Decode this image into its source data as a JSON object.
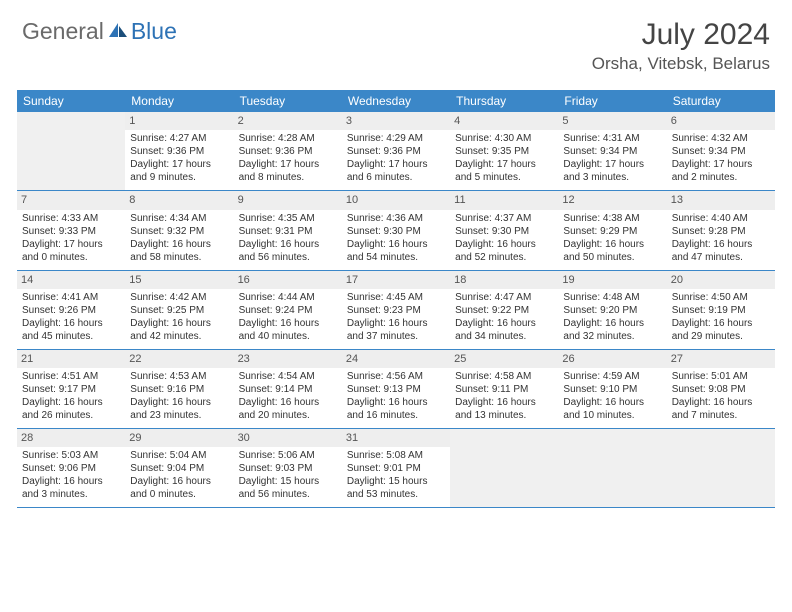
{
  "logo": {
    "text1": "General",
    "text2": "Blue"
  },
  "title": {
    "month": "July 2024",
    "location": "Orsha, Vitebsk, Belarus"
  },
  "colors": {
    "header_bg": "#3b87c8",
    "header_text": "#ffffff",
    "daynum_bg": "#eeeeee",
    "empty_bg": "#f0f0f0",
    "border": "#3b87c8",
    "logo_gray": "#6a6a6a",
    "logo_blue": "#2d72b5"
  },
  "day_names": [
    "Sunday",
    "Monday",
    "Tuesday",
    "Wednesday",
    "Thursday",
    "Friday",
    "Saturday"
  ],
  "weeks": [
    [
      {
        "empty": true
      },
      {
        "num": "1",
        "sunrise": "Sunrise: 4:27 AM",
        "sunset": "Sunset: 9:36 PM",
        "daylight": "Daylight: 17 hours and 9 minutes."
      },
      {
        "num": "2",
        "sunrise": "Sunrise: 4:28 AM",
        "sunset": "Sunset: 9:36 PM",
        "daylight": "Daylight: 17 hours and 8 minutes."
      },
      {
        "num": "3",
        "sunrise": "Sunrise: 4:29 AM",
        "sunset": "Sunset: 9:36 PM",
        "daylight": "Daylight: 17 hours and 6 minutes."
      },
      {
        "num": "4",
        "sunrise": "Sunrise: 4:30 AM",
        "sunset": "Sunset: 9:35 PM",
        "daylight": "Daylight: 17 hours and 5 minutes."
      },
      {
        "num": "5",
        "sunrise": "Sunrise: 4:31 AM",
        "sunset": "Sunset: 9:34 PM",
        "daylight": "Daylight: 17 hours and 3 minutes."
      },
      {
        "num": "6",
        "sunrise": "Sunrise: 4:32 AM",
        "sunset": "Sunset: 9:34 PM",
        "daylight": "Daylight: 17 hours and 2 minutes."
      }
    ],
    [
      {
        "num": "7",
        "sunrise": "Sunrise: 4:33 AM",
        "sunset": "Sunset: 9:33 PM",
        "daylight": "Daylight: 17 hours and 0 minutes."
      },
      {
        "num": "8",
        "sunrise": "Sunrise: 4:34 AM",
        "sunset": "Sunset: 9:32 PM",
        "daylight": "Daylight: 16 hours and 58 minutes."
      },
      {
        "num": "9",
        "sunrise": "Sunrise: 4:35 AM",
        "sunset": "Sunset: 9:31 PM",
        "daylight": "Daylight: 16 hours and 56 minutes."
      },
      {
        "num": "10",
        "sunrise": "Sunrise: 4:36 AM",
        "sunset": "Sunset: 9:30 PM",
        "daylight": "Daylight: 16 hours and 54 minutes."
      },
      {
        "num": "11",
        "sunrise": "Sunrise: 4:37 AM",
        "sunset": "Sunset: 9:30 PM",
        "daylight": "Daylight: 16 hours and 52 minutes."
      },
      {
        "num": "12",
        "sunrise": "Sunrise: 4:38 AM",
        "sunset": "Sunset: 9:29 PM",
        "daylight": "Daylight: 16 hours and 50 minutes."
      },
      {
        "num": "13",
        "sunrise": "Sunrise: 4:40 AM",
        "sunset": "Sunset: 9:28 PM",
        "daylight": "Daylight: 16 hours and 47 minutes."
      }
    ],
    [
      {
        "num": "14",
        "sunrise": "Sunrise: 4:41 AM",
        "sunset": "Sunset: 9:26 PM",
        "daylight": "Daylight: 16 hours and 45 minutes."
      },
      {
        "num": "15",
        "sunrise": "Sunrise: 4:42 AM",
        "sunset": "Sunset: 9:25 PM",
        "daylight": "Daylight: 16 hours and 42 minutes."
      },
      {
        "num": "16",
        "sunrise": "Sunrise: 4:44 AM",
        "sunset": "Sunset: 9:24 PM",
        "daylight": "Daylight: 16 hours and 40 minutes."
      },
      {
        "num": "17",
        "sunrise": "Sunrise: 4:45 AM",
        "sunset": "Sunset: 9:23 PM",
        "daylight": "Daylight: 16 hours and 37 minutes."
      },
      {
        "num": "18",
        "sunrise": "Sunrise: 4:47 AM",
        "sunset": "Sunset: 9:22 PM",
        "daylight": "Daylight: 16 hours and 34 minutes."
      },
      {
        "num": "19",
        "sunrise": "Sunrise: 4:48 AM",
        "sunset": "Sunset: 9:20 PM",
        "daylight": "Daylight: 16 hours and 32 minutes."
      },
      {
        "num": "20",
        "sunrise": "Sunrise: 4:50 AM",
        "sunset": "Sunset: 9:19 PM",
        "daylight": "Daylight: 16 hours and 29 minutes."
      }
    ],
    [
      {
        "num": "21",
        "sunrise": "Sunrise: 4:51 AM",
        "sunset": "Sunset: 9:17 PM",
        "daylight": "Daylight: 16 hours and 26 minutes."
      },
      {
        "num": "22",
        "sunrise": "Sunrise: 4:53 AM",
        "sunset": "Sunset: 9:16 PM",
        "daylight": "Daylight: 16 hours and 23 minutes."
      },
      {
        "num": "23",
        "sunrise": "Sunrise: 4:54 AM",
        "sunset": "Sunset: 9:14 PM",
        "daylight": "Daylight: 16 hours and 20 minutes."
      },
      {
        "num": "24",
        "sunrise": "Sunrise: 4:56 AM",
        "sunset": "Sunset: 9:13 PM",
        "daylight": "Daylight: 16 hours and 16 minutes."
      },
      {
        "num": "25",
        "sunrise": "Sunrise: 4:58 AM",
        "sunset": "Sunset: 9:11 PM",
        "daylight": "Daylight: 16 hours and 13 minutes."
      },
      {
        "num": "26",
        "sunrise": "Sunrise: 4:59 AM",
        "sunset": "Sunset: 9:10 PM",
        "daylight": "Daylight: 16 hours and 10 minutes."
      },
      {
        "num": "27",
        "sunrise": "Sunrise: 5:01 AM",
        "sunset": "Sunset: 9:08 PM",
        "daylight": "Daylight: 16 hours and 7 minutes."
      }
    ],
    [
      {
        "num": "28",
        "sunrise": "Sunrise: 5:03 AM",
        "sunset": "Sunset: 9:06 PM",
        "daylight": "Daylight: 16 hours and 3 minutes."
      },
      {
        "num": "29",
        "sunrise": "Sunrise: 5:04 AM",
        "sunset": "Sunset: 9:04 PM",
        "daylight": "Daylight: 16 hours and 0 minutes."
      },
      {
        "num": "30",
        "sunrise": "Sunrise: 5:06 AM",
        "sunset": "Sunset: 9:03 PM",
        "daylight": "Daylight: 15 hours and 56 minutes."
      },
      {
        "num": "31",
        "sunrise": "Sunrise: 5:08 AM",
        "sunset": "Sunset: 9:01 PM",
        "daylight": "Daylight: 15 hours and 53 minutes."
      },
      {
        "empty": true
      },
      {
        "empty": true
      },
      {
        "empty": true
      }
    ]
  ]
}
